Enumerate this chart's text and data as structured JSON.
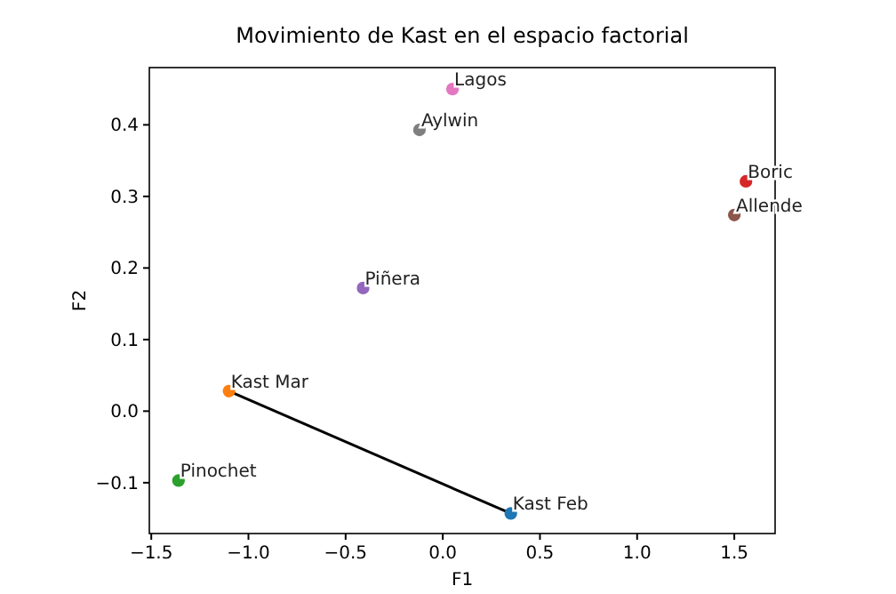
{
  "chart_data": {
    "type": "scatter",
    "title": "Movimiento de Kast en el espacio factorial",
    "xlabel": "F1",
    "ylabel": "F2",
    "xlim": [
      -1.51,
      1.71
    ],
    "ylim": [
      -0.171,
      0.48
    ],
    "xticks": [
      {
        "value": -1.5,
        "label": "−1.5"
      },
      {
        "value": -1,
        "label": "−1.0"
      },
      {
        "value": -0.5,
        "label": "−0.5"
      },
      {
        "value": 0,
        "label": "0.0"
      },
      {
        "value": 0.5,
        "label": "0.5"
      },
      {
        "value": 1,
        "label": "1.0"
      },
      {
        "value": 1.5,
        "label": "1.5"
      }
    ],
    "yticks": [
      {
        "value": -0.1,
        "label": "−0.1"
      },
      {
        "value": 0,
        "label": "0.0"
      },
      {
        "value": 0.1,
        "label": "0.1"
      },
      {
        "value": 0.2,
        "label": "0.2"
      },
      {
        "value": 0.3,
        "label": "0.3"
      },
      {
        "value": 0.4,
        "label": "0.4"
      }
    ],
    "grid": false,
    "series": [
      {
        "type": "line",
        "color": "#000000",
        "x": [
          -1.1,
          0.35
        ],
        "values": [
          0.028,
          -0.143
        ],
        "marker": "none",
        "line_style": "solid"
      },
      {
        "name": "Kast Feb",
        "color": "#1f77b4",
        "x": [
          0.35
        ],
        "values": [
          -0.143
        ],
        "marker": "circle"
      },
      {
        "name": "Kast Mar",
        "color": "#ff7f0e",
        "x": [
          -1.1
        ],
        "values": [
          0.028
        ],
        "marker": "circle"
      },
      {
        "name": "Pinochet",
        "color": "#2ca02c",
        "x": [
          -1.36
        ],
        "values": [
          -0.097
        ],
        "marker": "circle"
      },
      {
        "name": "Boric",
        "color": "#d62728",
        "x": [
          1.56
        ],
        "values": [
          0.321
        ],
        "marker": "circle"
      },
      {
        "name": "Piñera",
        "color": "#9467bd",
        "x": [
          -0.41
        ],
        "values": [
          0.172
        ],
        "marker": "circle"
      },
      {
        "name": "Allende",
        "color": "#8c564b",
        "x": [
          1.5
        ],
        "values": [
          0.274
        ],
        "marker": "circle"
      },
      {
        "name": "Lagos",
        "color": "#e377c2",
        "x": [
          0.05
        ],
        "values": [
          0.45
        ],
        "marker": "circle"
      },
      {
        "name": "Aylwin",
        "color": "#7f7f7f",
        "x": [
          -0.12
        ],
        "values": [
          0.393
        ],
        "marker": "circle"
      }
    ]
  }
}
